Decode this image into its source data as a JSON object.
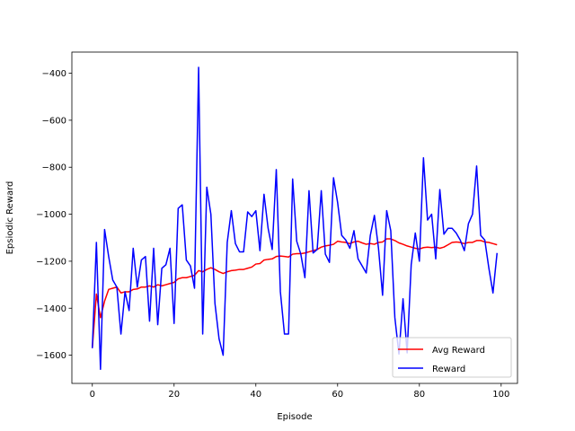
{
  "chart_data": {
    "type": "line",
    "title": "",
    "xlabel": "Episode",
    "ylabel": "Epsiodic Reward",
    "xlim": [
      -5,
      104
    ],
    "ylim": [
      -1720,
      -310
    ],
    "xticks": [
      0,
      20,
      40,
      60,
      80,
      100
    ],
    "yticks": [
      -1600,
      -1400,
      -1200,
      -1000,
      -800,
      -600,
      -400
    ],
    "ytick_labels": [
      "−1600",
      "−1400",
      "−1200",
      "−1000",
      "−800",
      "−600",
      "−400"
    ],
    "legend": {
      "position": "bottom-right"
    },
    "grid": false,
    "x": [
      0,
      1,
      2,
      3,
      4,
      5,
      6,
      7,
      8,
      9,
      10,
      11,
      12,
      13,
      14,
      15,
      16,
      17,
      18,
      19,
      20,
      21,
      22,
      23,
      24,
      25,
      26,
      27,
      28,
      29,
      30,
      31,
      32,
      33,
      34,
      35,
      36,
      37,
      38,
      39,
      40,
      41,
      42,
      43,
      44,
      45,
      46,
      47,
      48,
      49,
      50,
      51,
      52,
      53,
      54,
      55,
      56,
      57,
      58,
      59,
      60,
      61,
      62,
      63,
      64,
      65,
      66,
      67,
      68,
      69,
      70,
      71,
      72,
      73,
      74,
      75,
      76,
      77,
      78,
      79,
      80,
      81,
      82,
      83,
      84,
      85,
      86,
      87,
      88,
      89,
      90,
      91,
      92,
      93,
      94,
      95,
      96,
      97,
      98,
      99
    ],
    "series": [
      {
        "name": "Avg Reward",
        "color": "#ff0000",
        "values": [
          -1570,
          -1340,
          -1440,
          -1370,
          -1320,
          -1315,
          -1310,
          -1335,
          -1330,
          -1330,
          -1320,
          -1318,
          -1310,
          -1310,
          -1305,
          -1310,
          -1300,
          -1305,
          -1300,
          -1295,
          -1290,
          -1275,
          -1270,
          -1270,
          -1265,
          -1260,
          -1240,
          -1245,
          -1235,
          -1228,
          -1235,
          -1245,
          -1252,
          -1245,
          -1240,
          -1238,
          -1235,
          -1235,
          -1230,
          -1225,
          -1212,
          -1210,
          -1195,
          -1192,
          -1190,
          -1180,
          -1178,
          -1180,
          -1182,
          -1170,
          -1168,
          -1168,
          -1165,
          -1160,
          -1155,
          -1150,
          -1140,
          -1135,
          -1132,
          -1128,
          -1115,
          -1118,
          -1120,
          -1125,
          -1118,
          -1115,
          -1122,
          -1128,
          -1125,
          -1128,
          -1120,
          -1118,
          -1105,
          -1105,
          -1112,
          -1122,
          -1128,
          -1135,
          -1140,
          -1145,
          -1148,
          -1142,
          -1140,
          -1142,
          -1140,
          -1145,
          -1140,
          -1130,
          -1120,
          -1118,
          -1120,
          -1125,
          -1120,
          -1120,
          -1112,
          -1112,
          -1118,
          -1120,
          -1125,
          -1130
        ]
      },
      {
        "name": "Reward",
        "color": "#0000ff",
        "values": [
          -1570,
          -1120,
          -1660,
          -1065,
          -1180,
          -1280,
          -1310,
          -1510,
          -1330,
          -1410,
          -1145,
          -1310,
          -1195,
          -1180,
          -1455,
          -1145,
          -1470,
          -1230,
          -1215,
          -1145,
          -1465,
          -975,
          -960,
          -1195,
          -1220,
          -1315,
          -375,
          -1510,
          -885,
          -1000,
          -1380,
          -1530,
          -1600,
          -1120,
          -985,
          -1125,
          -1160,
          -1160,
          -990,
          -1010,
          -985,
          -1155,
          -915,
          -1060,
          -1150,
          -810,
          -1330,
          -1510,
          -1510,
          -850,
          -1115,
          -1170,
          -1270,
          -900,
          -1165,
          -1150,
          -900,
          -1170,
          -1205,
          -845,
          -950,
          -1090,
          -1110,
          -1145,
          -1070,
          -1190,
          -1220,
          -1250,
          -1090,
          -1005,
          -1145,
          -1345,
          -985,
          -1070,
          -1440,
          -1595,
          -1360,
          -1590,
          -1215,
          -1080,
          -1200,
          -760,
          -1025,
          -1000,
          -1190,
          -895,
          -1085,
          -1060,
          -1060,
          -1080,
          -1110,
          -1155,
          -1040,
          -1000,
          -795,
          -1090,
          -1110,
          -1230,
          -1335,
          -1165
        ]
      }
    ]
  }
}
